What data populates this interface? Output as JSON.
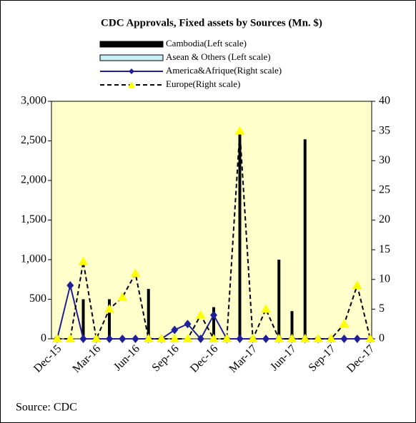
{
  "chart_data": {
    "type": "bar-line",
    "title": "CDC Approvals, Fixed assets by Sources (Mn. $)",
    "source": "Source: CDC",
    "categories": [
      "Dec-15",
      null,
      null,
      "Mar-16",
      null,
      null,
      "Jun-16",
      null,
      null,
      "Sep-16",
      null,
      null,
      "Dec-16",
      null,
      null,
      "Mar-17",
      null,
      null,
      "Jun-17",
      null,
      null,
      "Sep-17",
      null,
      null,
      "Dec-17"
    ],
    "ylim": [
      0,
      3000
    ],
    "yticks": [
      0,
      500,
      {
        "value": 1000,
        "label": "1,000"
      },
      {
        "value": 1500,
        "label": "1,500"
      },
      {
        "value": 2000,
        "label": "2,000"
      },
      {
        "value": 2500,
        "label": "2,500"
      },
      {
        "value": 3000,
        "label": "3,000"
      }
    ],
    "y2lim": [
      0,
      40
    ],
    "y2ticks": [
      0,
      5,
      10,
      15,
      20,
      25,
      30,
      35,
      40
    ],
    "series": [
      {
        "name": "Cambodia(Left scale)",
        "kind": "bar",
        "color": "#000000",
        "axis": "y",
        "values": [
          0,
          0,
          500,
          0,
          500,
          0,
          0,
          630,
          0,
          0,
          0,
          0,
          400,
          0,
          2600,
          0,
          0,
          1000,
          350,
          2520,
          0,
          0,
          0,
          0,
          0
        ]
      },
      {
        "name": "Asean & Others (Left scale)",
        "kind": "bar",
        "color": "#c6eff7",
        "axis": "y",
        "values": [
          0,
          0,
          0,
          0,
          0,
          0,
          0,
          0,
          0,
          0,
          0,
          0,
          0,
          0,
          0,
          0,
          0,
          0,
          0,
          0,
          0,
          0,
          0,
          0,
          0
        ]
      },
      {
        "name": "America&Afrique(Right scale)",
        "kind": "line",
        "color": "#1f1f9a",
        "marker": "diamond",
        "axis": "y2",
        "values": [
          0,
          9,
          0,
          0,
          0,
          0,
          0,
          0,
          0,
          1.5,
          2.5,
          0,
          4,
          0,
          0,
          0,
          0,
          0,
          0,
          0,
          0,
          0,
          0,
          0,
          0
        ]
      },
      {
        "name": "Europe(Right scale)",
        "kind": "line",
        "color": "#000000",
        "marker": "triangle",
        "marker_color": "#ffff00",
        "dashed": true,
        "axis": "y2",
        "values": [
          0,
          0,
          13,
          0,
          5,
          7,
          11,
          0,
          0,
          0,
          0,
          4,
          0,
          0,
          35,
          0,
          5,
          0,
          0,
          0,
          0,
          0,
          2.5,
          9,
          0
        ]
      }
    ]
  }
}
